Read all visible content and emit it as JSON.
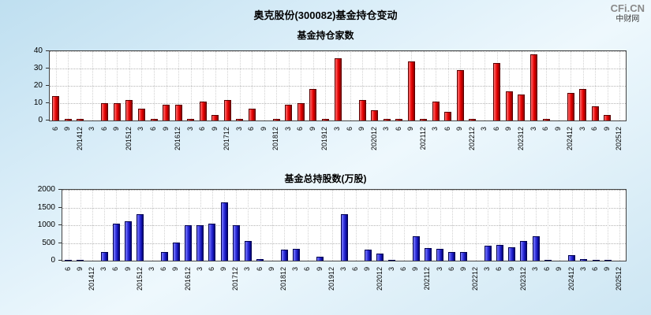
{
  "page": {
    "title": "奥克股份(300082)基金持仓变动",
    "logo": {
      "brand": "CFi.CN",
      "site": "中财网"
    }
  },
  "chart_data": [
    {
      "type": "bar",
      "title": "基金持仓家数",
      "xlabel": "",
      "ylabel": "",
      "ylim": [
        0,
        40
      ],
      "yticks": [
        0,
        10,
        20,
        30,
        40
      ],
      "grid": true,
      "bar_color": "#e60000",
      "bar_color_light": "#ff7070",
      "bar_color_dark": "#8b0000",
      "bar_border": "#5a0000",
      "categories": [
        "6",
        "9",
        "201412",
        "3",
        "6",
        "9",
        "201512",
        "3",
        "6",
        "9",
        "201612",
        "3",
        "6",
        "9",
        "201712",
        "3",
        "6",
        "9",
        "201812",
        "3",
        "6",
        "9",
        "201912",
        "3",
        "6",
        "9",
        "202012",
        "3",
        "6",
        "9",
        "202112",
        "3",
        "6",
        "9",
        "202212",
        "3",
        "6",
        "9",
        "202312",
        "3",
        "6",
        "9",
        "202412",
        "3",
        "6",
        "9",
        "202512"
      ],
      "values": [
        14,
        1,
        1,
        0,
        10,
        10,
        12,
        7,
        1,
        9,
        9,
        1,
        11,
        3,
        12,
        1,
        7,
        0,
        1,
        9,
        10,
        18,
        1,
        36,
        0,
        12,
        6,
        1,
        1,
        34,
        1,
        11,
        5,
        29,
        1,
        0,
        33,
        17,
        15,
        38,
        1,
        0,
        16,
        18,
        8,
        3,
        0
      ]
    },
    {
      "type": "bar",
      "title": "基金总持股数(万股)",
      "xlabel": "",
      "ylabel": "",
      "ylim": [
        0,
        2000
      ],
      "yticks": [
        0,
        500,
        1000,
        1500,
        2000
      ],
      "grid": true,
      "bar_color": "#2424d2",
      "bar_color_light": "#7d7dff",
      "bar_color_dark": "#000078",
      "bar_border": "#000050",
      "categories": [
        "6",
        "9",
        "201412",
        "3",
        "6",
        "9",
        "201512",
        "3",
        "6",
        "9",
        "201612",
        "3",
        "6",
        "9",
        "201712",
        "3",
        "6",
        "9",
        "201812",
        "3",
        "6",
        "9",
        "201912",
        "3",
        "6",
        "9",
        "202012",
        "3",
        "6",
        "9",
        "202112",
        "3",
        "6",
        "9",
        "202212",
        "3",
        "6",
        "9",
        "202312",
        "3",
        "6",
        "9",
        "202412",
        "3",
        "6",
        "9",
        "202512"
      ],
      "values": [
        30,
        10,
        0,
        250,
        1050,
        1100,
        1300,
        0,
        250,
        500,
        1000,
        1000,
        1050,
        1650,
        1000,
        550,
        50,
        0,
        300,
        330,
        0,
        100,
        0,
        1300,
        0,
        300,
        200,
        30,
        0,
        700,
        350,
        330,
        250,
        250,
        0,
        430,
        450,
        380,
        550,
        700,
        30,
        0,
        150,
        50,
        30,
        20,
        0
      ]
    }
  ]
}
